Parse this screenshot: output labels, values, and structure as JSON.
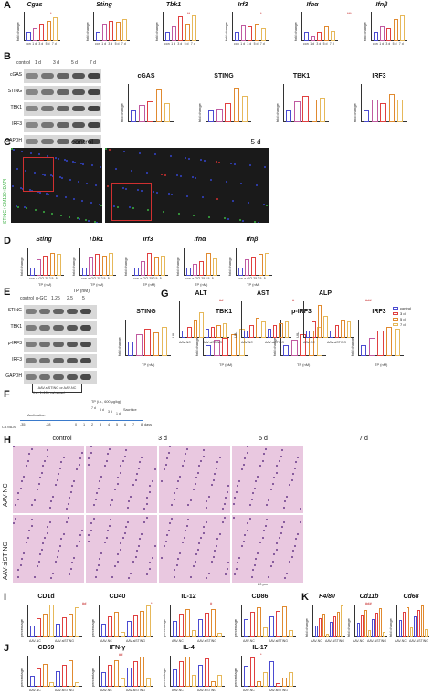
{
  "panels": {
    "A": {
      "label": "A",
      "genes": [
        "Cgas",
        "Sting",
        "Tbk1",
        "Irf3",
        "Ifnα",
        "Ifnβ"
      ],
      "ylabel": "fold change",
      "xticks": [
        "con",
        "1 d",
        "3 d",
        "5 d",
        "7 d"
      ]
    },
    "B": {
      "label": "B",
      "lanes": [
        "control",
        "1 d",
        "3 d",
        "5 d",
        "7 d"
      ],
      "blots": [
        "cGAS",
        "STING",
        "TBK1",
        "IRF3",
        "GAPDH"
      ],
      "proteins": [
        "cGAS",
        "STING",
        "TBK1",
        "IRF3"
      ],
      "ylabel": "fold change"
    },
    "C": {
      "label": "C",
      "titles": [
        "control",
        "5 d"
      ],
      "stain": "STING+GM130+DAPI"
    },
    "D": {
      "label": "D",
      "genes": [
        "Sting",
        "Tbk1",
        "Irf3",
        "Ifnα",
        "Ifnβ"
      ],
      "ylabel": "fold change",
      "xticks": [
        "con",
        "α-GC",
        "1.25",
        "2.5",
        "5"
      ],
      "xunit": "TP (nM)"
    },
    "E": {
      "label": "E",
      "tp_header": "TP (nM)",
      "lanes": [
        "control",
        "α-GC",
        "1.25",
        "2.5",
        "5"
      ],
      "blots": [
        "STING",
        "TBK1",
        "p-IRF3",
        "IRF3",
        "GAPDH"
      ],
      "proteins": [
        "STING",
        "TBK1",
        "p-IRF3",
        "IRF3"
      ],
      "xunit": "TP (nM)"
    },
    "F": {
      "label": "F",
      "mouse": "C57BL/6",
      "box": "AAV-siSTING or AAV-NC",
      "dose": "(i.p., 1×10¹¹ vg/mouse)",
      "days": [
        "-35",
        "-28",
        "0",
        "1",
        "2",
        "3",
        "4",
        "5",
        "6",
        "7",
        "8"
      ],
      "accl": "Acclimation",
      "tp": "TP (i.p., 600 μg/kg)",
      "sac": "Sacrifice",
      "unit": "days",
      "marks": [
        "7 d",
        "5 d",
        "3 d",
        "1 d"
      ]
    },
    "G": {
      "label": "G",
      "tests": [
        "ALT",
        "AST",
        "ALP"
      ],
      "ylabel": "U/L",
      "groups": [
        "AAV-NC",
        "AAV-siSTING"
      ],
      "legend": [
        "control",
        "3 d",
        "5 d",
        "7 d"
      ]
    },
    "H": {
      "label": "H",
      "cols": [
        "control",
        "3 d",
        "5 d",
        "7 d"
      ],
      "rows": [
        "AAV-NC",
        "AAV-siSTING"
      ],
      "scale": "20 μm"
    },
    "I": {
      "label": "I",
      "markers": [
        "CD1d",
        "CD40",
        "IL-12",
        "CD86"
      ],
      "ylabel": "percentage",
      "groups": [
        "AAV-NC",
        "AAV-siSTING"
      ]
    },
    "J": {
      "label": "J",
      "markers": [
        "CD69",
        "IFN-γ",
        "IL-4",
        "IL-17"
      ],
      "ylabel": "percentage",
      "groups": [
        "AAV-NC",
        "AAV-siSTING"
      ]
    },
    "K": {
      "label": "K",
      "markers": [
        "F4/80",
        "Cd11b",
        "Cd68"
      ],
      "ylabel": "fold change",
      "groups": [
        "AAV-NC",
        "AAV-siSTING"
      ]
    }
  },
  "sig": {
    "star": "*",
    "dstar": "**",
    "tstar": "***",
    "hash": "#",
    "dhash": "##",
    "thash": "###"
  },
  "colors": {
    "control": "#4b4bd1",
    "d1": "#c05aa0",
    "d3": "#e04040",
    "d5": "#e08a30",
    "d7": "#e6b85a",
    "blot_bg": "#d8d8d8",
    "green": "#3cb043",
    "red": "#d03030"
  }
}
